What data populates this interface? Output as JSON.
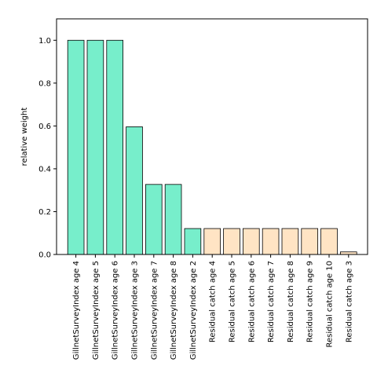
{
  "chart_data": {
    "type": "bar",
    "title": "",
    "xlabel": "",
    "ylabel": "relative weight",
    "ylim": [
      0,
      1.1
    ],
    "yticks": [
      0.0,
      0.2,
      0.4,
      0.6,
      0.8,
      1.0
    ],
    "ytick_labels": [
      "0.0",
      "0.2",
      "0.4",
      "0.6",
      "0.8",
      "1.0"
    ],
    "grid": false,
    "categories": [
      "GillnetSurveyIndex age 4",
      "GillnetSurveyIndex age 5",
      "GillnetSurveyIndex age 6",
      "GillnetSurveyIndex age 3",
      "GillnetSurveyIndex age 7",
      "GillnetSurveyIndex age 8",
      "GillnetSurveyIndex age 2",
      "Residual catch age 4",
      "Residual catch age 5",
      "Residual catch age 6",
      "Residual catch age 7",
      "Residual catch age 8",
      "Residual catch age 9",
      "Residual catch age 10",
      "Residual catch age 3"
    ],
    "values": [
      1.0,
      1.0,
      1.0,
      0.596,
      0.327,
      0.327,
      0.121,
      0.121,
      0.121,
      0.121,
      0.121,
      0.121,
      0.121,
      0.121,
      0.012
    ],
    "bar_colors": [
      "#77eecb",
      "#77eecb",
      "#77eecb",
      "#77eecb",
      "#77eecb",
      "#77eecb",
      "#77eecb",
      "#ffe4c4",
      "#ffe4c4",
      "#ffe4c4",
      "#ffe4c4",
      "#ffe4c4",
      "#ffe4c4",
      "#ffe4c4",
      "#ffe4c4"
    ],
    "bar_edge_color": "#000000"
  }
}
